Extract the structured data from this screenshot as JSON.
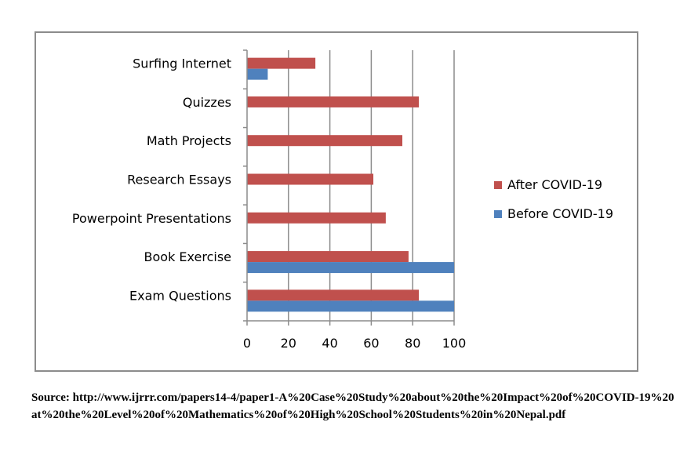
{
  "chart_data": {
    "type": "bar",
    "orientation": "horizontal",
    "categories": [
      "Surfing Internet",
      "Quizzes",
      "Math Projects",
      "Research Essays",
      "Powerpoint Presentations",
      "Book Exercise",
      "Exam Questions"
    ],
    "series": [
      {
        "name": "After COVID-19",
        "color": "#c0504d",
        "values": [
          33,
          83,
          75,
          61,
          67,
          78,
          83
        ]
      },
      {
        "name": "Before COVID-19",
        "color": "#4f81bd",
        "values": [
          10,
          null,
          null,
          null,
          null,
          100,
          100
        ]
      }
    ],
    "xlim": [
      0,
      100
    ],
    "xticks": [
      "0",
      "20",
      "40",
      "60",
      "80",
      "100"
    ],
    "grid": "vertical",
    "legend_position": "right"
  },
  "source_text": "Source: http://www.ijrrr.com/papers14-4/paper1-A%20Case%20Study%20about%20the%20Impact%20of%20COVID-19%20at%20the%20Level%20of%20Mathematics%20of%20High%20School%20Students%20in%20Nepal.pdf"
}
